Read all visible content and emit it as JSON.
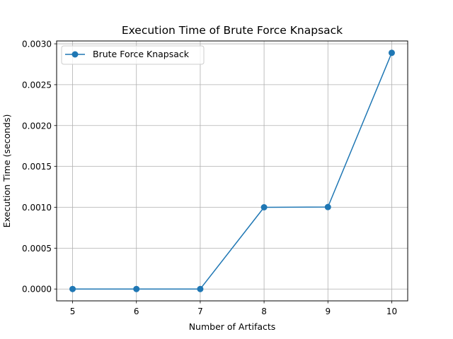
{
  "chart_data": {
    "type": "line",
    "title": "Execution Time of Brute Force Knapsack",
    "xlabel": "Number of Artifacts",
    "ylabel": "Execution Time (seconds)",
    "x": [
      5,
      6,
      7,
      8,
      9,
      10
    ],
    "series": [
      {
        "name": "Brute Force Knapsack",
        "values": [
          0.0,
          0.0,
          0.0,
          0.001,
          0.001003,
          0.00289
        ],
        "color": "#1f77b4",
        "marker": "circle"
      }
    ],
    "xticks": [
      "5",
      "6",
      "7",
      "8",
      "9",
      "10"
    ],
    "yticks": [
      "0.0000",
      "0.0005",
      "0.0010",
      "0.0015",
      "0.0020",
      "0.0025",
      "0.0030"
    ],
    "xlim": [
      4.75,
      10.25
    ],
    "ylim": [
      -0.000145,
      0.003035
    ],
    "grid": true,
    "legend_position": "top-left"
  }
}
